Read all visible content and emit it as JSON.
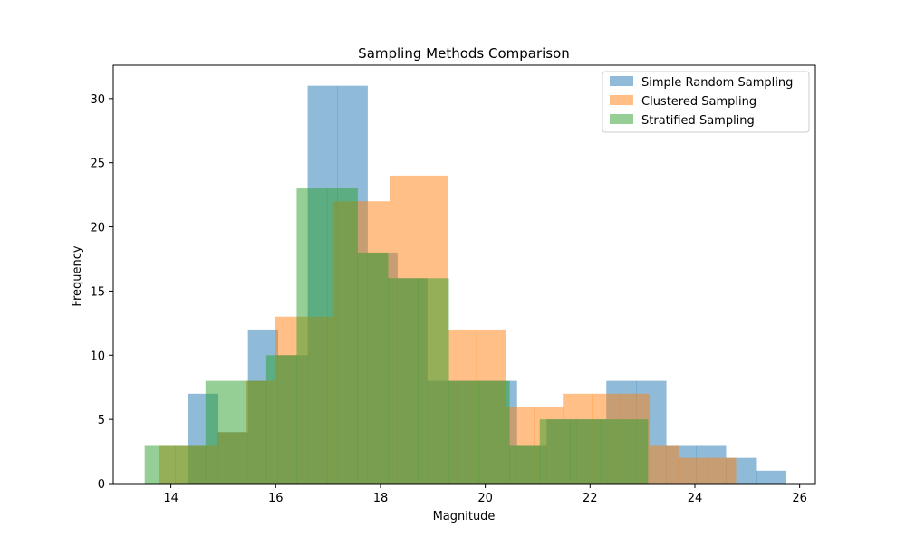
{
  "chart_data": {
    "type": "histogram",
    "title": "Sampling Methods Comparison",
    "xlabel": "Magnitude",
    "ylabel": "Frequency",
    "xlim": [
      12.9,
      26.3
    ],
    "ylim": [
      0,
      32.6
    ],
    "xticks": [
      14,
      16,
      18,
      20,
      22,
      24,
      26
    ],
    "yticks": [
      0,
      5,
      10,
      15,
      20,
      25,
      30
    ],
    "grid": false,
    "legend_position": "top-right",
    "series": [
      {
        "name": "Simple Random Sampling",
        "color": "#1f77b4",
        "alpha": 0.5,
        "bins": [
          14.33,
          14.9,
          15.47,
          16.04,
          16.61,
          17.18,
          17.75,
          18.32,
          18.89,
          19.46,
          20.03,
          20.6,
          21.17,
          21.74,
          22.31,
          22.88,
          23.45,
          24.02,
          24.59,
          25.16,
          25.73
        ],
        "counts": [
          7,
          4,
          12,
          10,
          31,
          31,
          18,
          16,
          8,
          8,
          8,
          3,
          5,
          5,
          8,
          8,
          3,
          3,
          2,
          1
        ]
      },
      {
        "name": "Clustered Sampling",
        "color": "#ff7f0e",
        "alpha": 0.5,
        "bins": [
          13.78,
          14.33,
          14.88,
          15.43,
          15.98,
          16.53,
          17.08,
          17.63,
          18.18,
          18.73,
          19.28,
          19.83,
          20.38,
          20.93,
          21.48,
          22.03,
          22.58,
          23.13,
          23.68,
          24.23,
          24.78
        ],
        "counts": [
          3,
          3,
          4,
          8,
          13,
          13,
          22,
          22,
          24,
          24,
          12,
          12,
          6,
          6,
          7,
          7,
          7,
          3,
          2,
          2
        ]
      },
      {
        "name": "Stratified Sampling",
        "color": "#2ca02c",
        "alpha": 0.5,
        "bins": [
          13.5,
          14.08,
          14.66,
          15.24,
          15.82,
          16.4,
          16.98,
          17.56,
          18.14,
          18.72,
          19.3,
          19.88,
          20.46,
          21.04,
          21.62,
          22.2,
          22.78,
          23.1
        ],
        "counts": [
          3,
          3,
          8,
          8,
          10,
          23,
          23,
          18,
          16,
          16,
          8,
          8,
          3,
          5,
          5,
          5,
          5
        ]
      }
    ]
  }
}
